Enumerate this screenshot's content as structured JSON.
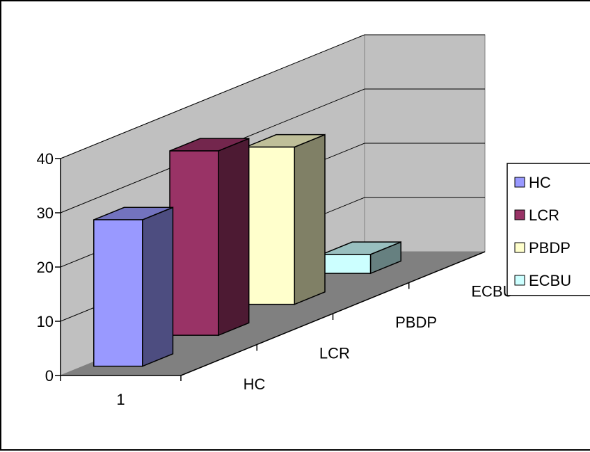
{
  "chart_data": {
    "type": "bar",
    "projection": "3d-clustered",
    "title": "",
    "xlabel": "",
    "ylabel": "",
    "ylim": [
      0,
      40
    ],
    "yticks": [
      0,
      10,
      20,
      30,
      40
    ],
    "gridlines": true,
    "legend_position": "right",
    "x_categories": [
      "1"
    ],
    "depth_categories": [
      "HC",
      "LCR",
      "PBDP",
      "ECBU"
    ],
    "series": [
      {
        "name": "HC",
        "values": [
          27
        ],
        "color": "#9999FF"
      },
      {
        "name": "LCR",
        "values": [
          34
        ],
        "color": "#993366"
      },
      {
        "name": "PBDP",
        "values": [
          29
        ],
        "color": "#FFFFCC"
      },
      {
        "name": "ECBU",
        "values": [
          3.5
        ],
        "color": "#CCFFFF"
      }
    ]
  }
}
